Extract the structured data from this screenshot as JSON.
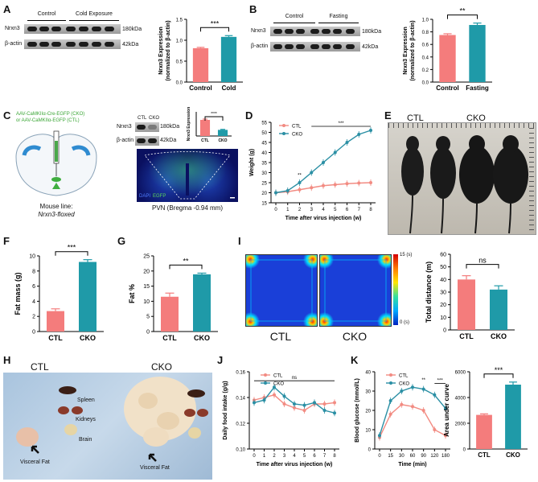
{
  "panels": {
    "A": {
      "letter": "A",
      "blot_groups": [
        "Control",
        "Cold Exposure"
      ],
      "blot_rows": [
        "Nrxn3",
        "β-actin"
      ],
      "sizes": [
        "180kDa",
        "42kDa"
      ],
      "chart_ylabel": "Nrxn3 Expression\n(normalized to β-actin)",
      "sig": "***"
    },
    "B": {
      "letter": "B",
      "blot_groups": [
        "Control",
        "Fasting"
      ],
      "blot_rows": [
        "Nrxn3",
        "β-actin"
      ],
      "sizes": [
        "180kDa",
        "42kDa"
      ],
      "chart_ylabel": "Nrxn3 Expression\n(normalized to β-actin)",
      "sig": "**"
    },
    "C": {
      "letter": "C",
      "virus_line1": "AAV-CaMKIIα-Cre-EGFP (CKO)",
      "virus_line2": "or AAV-CaMKIIα-EGFP (CTL)",
      "mouse_line_label": "Mouse line:",
      "mouse_line": "Nrxn3-floxed",
      "blot_groups": [
        "CTL",
        "CKO"
      ],
      "blot_rows": [
        "Nrxn3",
        "β-actin"
      ],
      "sizes": [
        "180kDa",
        "42kDa"
      ],
      "inset_ylabel": "Nrxn3 Expression",
      "inset_sig": "****",
      "fluor_legend_dapi": "DAPI",
      "fluor_legend_egfp": "EGFP",
      "caption": "PVN  (Bregma -0.94 mm)"
    },
    "D": {
      "letter": "D",
      "legend": [
        "CTL",
        "CKO"
      ],
      "sig_mid": "**",
      "sig_bar": "***"
    },
    "E": {
      "letter": "E",
      "labels": [
        "CTL",
        "CKO"
      ]
    },
    "F": {
      "letter": "F",
      "sig": "***"
    },
    "G": {
      "letter": "G",
      "sig": "**"
    },
    "I": {
      "letter": "I",
      "heat_labels": [
        "CTL",
        "CKO"
      ],
      "colorbar_max": "15 (s)",
      "colorbar_min": "0 (s)",
      "sig": "ns"
    },
    "H": {
      "letter": "H",
      "labels": [
        "CTL",
        "CKO"
      ],
      "organs": [
        "Spleen",
        "Kidneys",
        "Brain"
      ],
      "visceral_ctl": "Visceral Fat",
      "visceral_cko": "Visceral Fat"
    },
    "J": {
      "letter": "J",
      "legend": [
        "CTL",
        "CKO"
      ],
      "sig": "ns"
    },
    "K": {
      "letter": "K",
      "legend": [
        "CTL",
        "CKO"
      ],
      "sig_labels": [
        "**",
        "***"
      ],
      "auc_sig": "***"
    }
  },
  "colors": {
    "ctl": "#f47c7c",
    "cko": "#1f9aa8",
    "ctl_line": "#f28b82",
    "cko_line": "#2a8fa4"
  },
  "chart_data": [
    {
      "id": "A",
      "type": "bar",
      "title": "",
      "xlabel": "",
      "ylabel": "Nrxn3 Expression (normalized to β-actin)",
      "categories": [
        "Control",
        "Cold"
      ],
      "values": [
        0.81,
        1.08
      ],
      "errors": [
        0.02,
        0.03
      ],
      "ylim": [
        0,
        1.5
      ],
      "yticks": [
        0.0,
        0.5,
        1.0,
        1.5
      ]
    },
    {
      "id": "B",
      "type": "bar",
      "title": "",
      "xlabel": "",
      "ylabel": "Nrxn3 Expression (normalized to β-actin)",
      "categories": [
        "Control",
        "Fasting"
      ],
      "values": [
        0.75,
        0.91
      ],
      "errors": [
        0.02,
        0.03
      ],
      "ylim": [
        0,
        1.0
      ],
      "yticks": [
        0.0,
        0.2,
        0.4,
        0.6,
        0.8,
        1.0
      ]
    },
    {
      "id": "C-inset",
      "type": "bar",
      "title": "",
      "xlabel": "",
      "ylabel": "Nrxn3 Expression",
      "categories": [
        "CTL",
        "CKO"
      ],
      "values": [
        1.0,
        0.38
      ],
      "errors": [
        0.05,
        0.03
      ],
      "ylim": [
        0,
        1.5
      ],
      "yticks": []
    },
    {
      "id": "D",
      "type": "line",
      "title": "",
      "xlabel": "Time after virus injection (w)",
      "ylabel": "Weight (g)",
      "x": [
        0,
        1,
        2,
        3,
        4,
        5,
        6,
        7,
        8
      ],
      "series": [
        {
          "name": "CTL",
          "values": [
            20,
            20.5,
            21.5,
            22.5,
            23.5,
            24,
            24.5,
            24.8,
            25
          ]
        },
        {
          "name": "CKO",
          "values": [
            20,
            21,
            25,
            30,
            35,
            40,
            45,
            49,
            51
          ]
        }
      ],
      "ylim": [
        15,
        55
      ],
      "yticks": [
        15,
        20,
        25,
        30,
        35,
        40,
        45,
        50,
        55
      ]
    },
    {
      "id": "F",
      "type": "bar",
      "title": "",
      "xlabel": "",
      "ylabel": "Fat mass (g)",
      "categories": [
        "CTL",
        "CKO"
      ],
      "values": [
        2.7,
        9.2
      ],
      "errors": [
        0.3,
        0.3
      ],
      "ylim": [
        0,
        10
      ],
      "yticks": [
        0,
        2,
        4,
        6,
        8,
        10
      ]
    },
    {
      "id": "G",
      "type": "bar",
      "title": "",
      "xlabel": "",
      "ylabel": "Fat %",
      "categories": [
        "CTL",
        "CKO"
      ],
      "values": [
        11.5,
        18.9
      ],
      "errors": [
        1.2,
        0.4
      ],
      "ylim": [
        0,
        25
      ],
      "yticks": [
        0,
        5,
        10,
        15,
        20,
        25
      ]
    },
    {
      "id": "I",
      "type": "bar",
      "title": "",
      "xlabel": "",
      "ylabel": "Total distance (m)",
      "categories": [
        "CTL",
        "CKO"
      ],
      "values": [
        40,
        32
      ],
      "errors": [
        3,
        3
      ],
      "ylim": [
        0,
        60
      ],
      "yticks": [
        0,
        10,
        20,
        30,
        40,
        50,
        60
      ]
    },
    {
      "id": "J",
      "type": "line",
      "title": "",
      "xlabel": "Time after virus injection (w)",
      "ylabel": "Daily food intake (g/g)",
      "x": [
        0,
        1,
        2,
        3,
        4,
        5,
        6,
        7,
        8
      ],
      "series": [
        {
          "name": "CTL",
          "values": [
            0.138,
            0.14,
            0.142,
            0.135,
            0.132,
            0.13,
            0.135,
            0.135,
            0.136
          ]
        },
        {
          "name": "CKO",
          "values": [
            0.136,
            0.138,
            0.148,
            0.141,
            0.135,
            0.134,
            0.136,
            0.13,
            0.128
          ]
        }
      ],
      "ylim": [
        0.1,
        0.16
      ],
      "yticks": [
        0.1,
        0.12,
        0.14,
        0.16
      ]
    },
    {
      "id": "K",
      "type": "line",
      "title": "",
      "xlabel": "Time (min)",
      "ylabel": "Blood glucose (mmol/L)",
      "x": [
        0,
        15,
        30,
        60,
        90,
        120,
        180
      ],
      "xtick_labels": [
        "0",
        "15",
        "30",
        "60",
        "90",
        "120",
        "180"
      ],
      "series": [
        {
          "name": "CTL",
          "values": [
            6,
            18,
            23,
            22,
            20,
            10,
            7
          ]
        },
        {
          "name": "CKO",
          "values": [
            7,
            25,
            30,
            32,
            31,
            28,
            21
          ]
        }
      ],
      "ylim": [
        0,
        40
      ],
      "yticks": [
        0,
        10,
        20,
        30,
        40
      ]
    },
    {
      "id": "K-auc",
      "type": "bar",
      "title": "",
      "xlabel": "",
      "ylabel": "Area under curve",
      "categories": [
        "CTL",
        "CKO"
      ],
      "values": [
        2650,
        5000
      ],
      "errors": [
        80,
        200
      ],
      "ylim": [
        0,
        6000
      ],
      "yticks": [
        0,
        2000,
        4000,
        6000
      ]
    }
  ]
}
